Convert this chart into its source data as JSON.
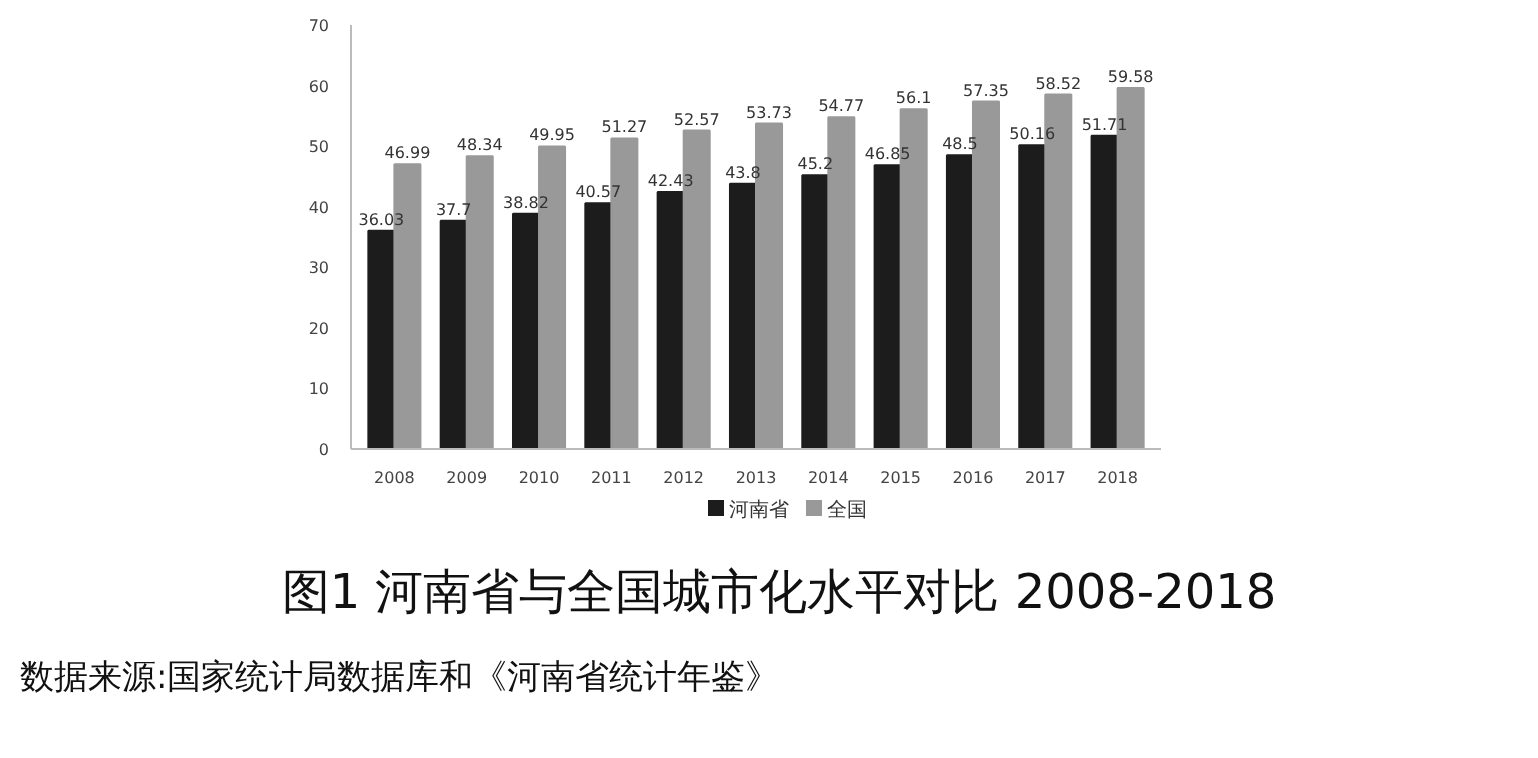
{
  "chart_data": {
    "type": "bar",
    "title": "图1 河南省与全国城市化水平对比 2008-2018",
    "annotations": [
      "数据来源:国家统计局数据库和《河南省统计年鉴》"
    ],
    "categories": [
      "2008",
      "2009",
      "2010",
      "2011",
      "2012",
      "2013",
      "2014",
      "2015",
      "2016",
      "2017",
      "2018"
    ],
    "series": [
      {
        "name": "河南省",
        "color": "#1c1c1c",
        "values": [
          36.03,
          37.7,
          38.82,
          40.57,
          42.43,
          43.8,
          45.2,
          46.85,
          48.5,
          50.16,
          51.71
        ]
      },
      {
        "name": "全国",
        "color": "#999999",
        "values": [
          46.99,
          48.34,
          49.95,
          51.27,
          52.57,
          53.73,
          54.77,
          56.1,
          57.35,
          58.52,
          59.58
        ]
      }
    ],
    "ylim": [
      0,
      70
    ],
    "yticks": [
      0,
      10,
      20,
      30,
      40,
      50,
      60,
      70
    ],
    "data_labels": true,
    "grid": false,
    "legend": "bottom"
  }
}
